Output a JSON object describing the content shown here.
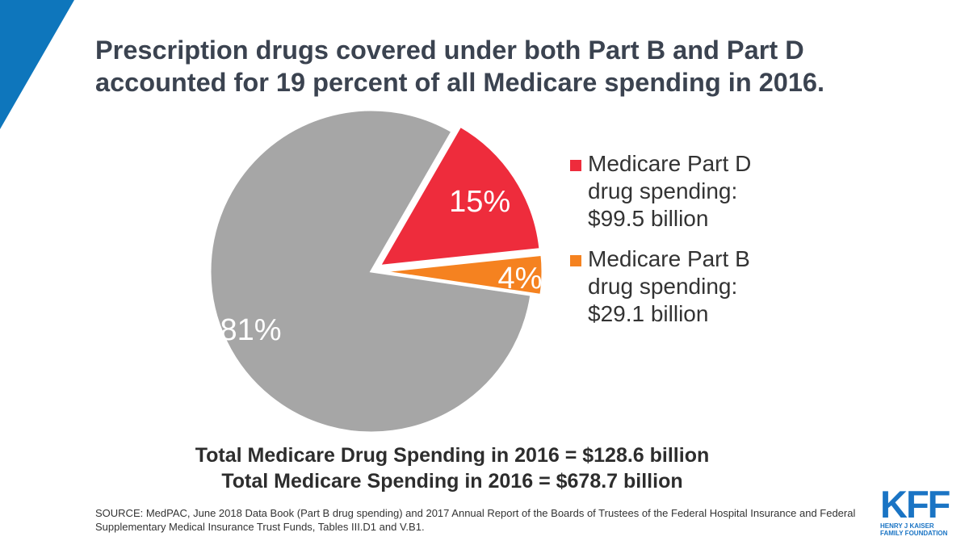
{
  "title": {
    "line1": "Prescription drugs covered under both Part B and Part D",
    "line2": "accounted for 19 percent of all Medicare spending in 2016."
  },
  "chart_data": {
    "type": "pie",
    "slices": [
      {
        "name": "",
        "value": 81,
        "label": "81%",
        "color": "#a6a6a6",
        "exploded": false
      },
      {
        "name": "Medicare Part D drug spending: $99.5 billion",
        "value": 15,
        "label": "15%",
        "color": "#ee2c3c",
        "exploded": true
      },
      {
        "name": "Medicare Part B drug spending: $29.1 billion",
        "value": 4,
        "label": "4%",
        "color": "#f58220",
        "exploded": true
      }
    ],
    "legend_position": "right"
  },
  "legend": [
    {
      "label": "Medicare Part D drug spending: $99.5 billion",
      "color": "#ee2c3c"
    },
    {
      "label": "Medicare Part B drug spending: $29.1 billion",
      "color": "#f58220"
    }
  ],
  "totals": {
    "drug": "Total Medicare Drug Spending in 2016 = $128.6 billion",
    "all": "Total Medicare Spending in 2016 = $678.7 billion"
  },
  "source": "SOURCE: MedPAC, June 2018 Data Book (Part B drug spending) and 2017 Annual Report of the Boards of Trustees of the Federal Hospital Insurance and Federal Supplementary Medical Insurance Trust Funds, Tables III.D1 and V.B1.",
  "logo": {
    "mark": "KFF",
    "line1": "HENRY J KAISER",
    "line2": "FAMILY FOUNDATION"
  },
  "colors": {
    "accent": "#0e76bc",
    "title": "#3b4350"
  }
}
